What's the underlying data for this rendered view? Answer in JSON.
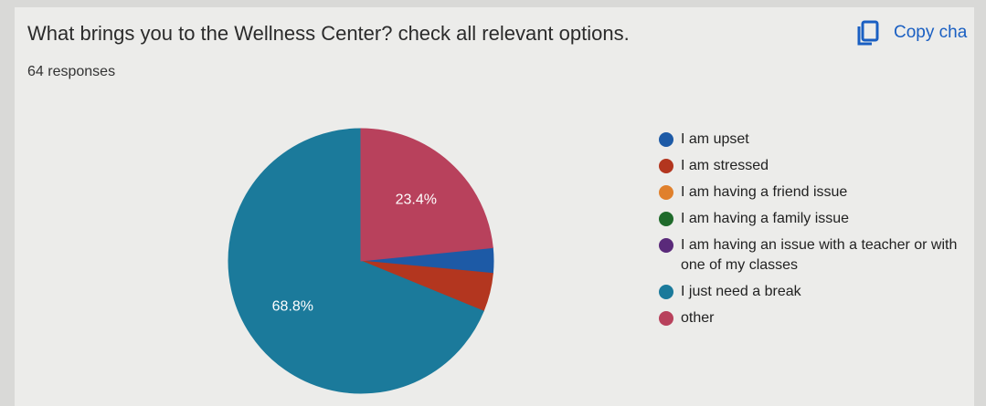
{
  "chart_data": {
    "type": "pie",
    "title": "What brings you to the Wellness Center?  check all relevant options.",
    "subtitle": "64 responses",
    "copy_label": "Copy cha",
    "categories": [
      "I am upset",
      "I am stressed",
      "I am having a friend issue",
      "I am having a family issue",
      "I am having an issue with a teacher or with one of my classes",
      "I just need a break",
      "other"
    ],
    "values": [
      3.1,
      4.7,
      0,
      0,
      0,
      68.8,
      23.4
    ],
    "value_labels": [
      null,
      null,
      null,
      null,
      null,
      "68.8%",
      "23.4%"
    ],
    "colors": [
      "#1d5aa6",
      "#b3361f",
      "#e0802c",
      "#1f6a2b",
      "#5a2a7a",
      "#1b7a9b",
      "#b8415c"
    ],
    "legend": "right"
  }
}
